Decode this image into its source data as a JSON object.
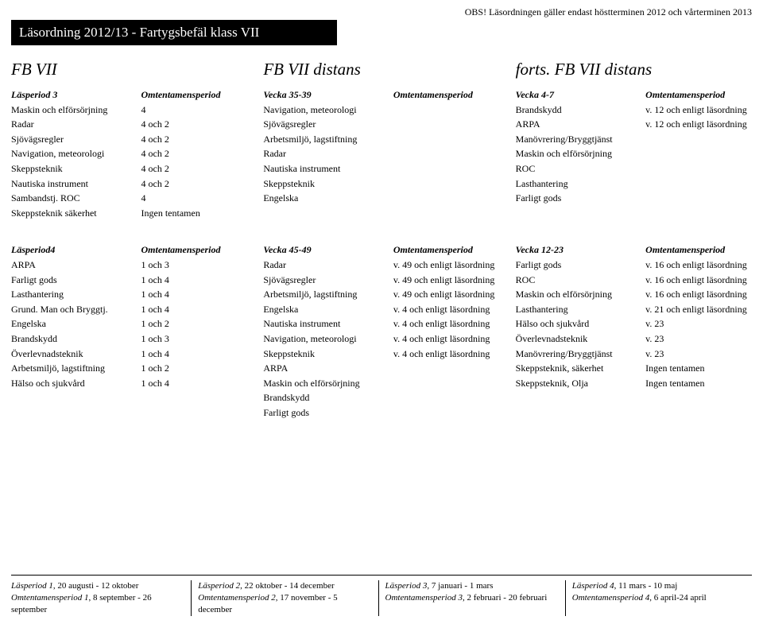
{
  "obs_line": "OBS! Läsordningen gäller endast höstterminen 2012 och vårterminen 2013",
  "title_bar": "Läsordning 2012/13 - Fartygsbefäl klass VII",
  "col1_heading": "FB VII",
  "col2_heading": "FB VII distans",
  "col3_heading": "forts. FB VII distans",
  "t1": {
    "h1": "Läsperiod 3",
    "h2": "Omtentamensperiod",
    "rows": [
      [
        "Maskin och elförsörjning",
        "4"
      ],
      [
        "Radar",
        "4 och 2"
      ],
      [
        "Sjövägsregler",
        "4 och 2"
      ],
      [
        "Navigation, meteorologi",
        "4 och 2"
      ],
      [
        "Skeppsteknik",
        "4 och 2"
      ],
      [
        "Nautiska instrument",
        "4 och 2"
      ],
      [
        "Sambandstj. ROC",
        "4"
      ],
      [
        "Skeppsteknik säkerhet",
        "Ingen tentamen"
      ]
    ]
  },
  "t2": {
    "h1": "Vecka 35-39",
    "h2": "Omtentamensperiod",
    "rows": [
      [
        "Navigation, meteorologi",
        ""
      ],
      [
        "Sjövägsregler",
        ""
      ],
      [
        "Arbetsmiljö, lagstiftning",
        ""
      ],
      [
        "Radar",
        ""
      ],
      [
        "Nautiska instrument",
        ""
      ],
      [
        "Skeppsteknik",
        ""
      ],
      [
        "Engelska",
        ""
      ]
    ]
  },
  "t3": {
    "h1": "Vecka 4-7",
    "h2": "Omtentamensperiod",
    "rows": [
      [
        "Brandskydd",
        "v. 12 och enligt läsordning"
      ],
      [
        "ARPA",
        "v. 12 och enligt läsordning"
      ],
      [
        "Manövrering/Bryggtjänst",
        ""
      ],
      [
        "Maskin och elförsörjning",
        ""
      ],
      [
        "ROC",
        ""
      ],
      [
        "Lasthantering",
        ""
      ],
      [
        "Farligt gods",
        ""
      ]
    ]
  },
  "t4": {
    "h1": "Läsperiod4",
    "h2": "Omtentamensperiod",
    "rows": [
      [
        "ARPA",
        "1 och 3"
      ],
      [
        "Farligt gods",
        "1 och 4"
      ],
      [
        "Lasthantering",
        "1 och 4"
      ],
      [
        "Grund. Man och Bryggtj.",
        "1 och 4"
      ],
      [
        "Engelska",
        "1 och 2"
      ],
      [
        "Brandskydd",
        "1 och 3"
      ],
      [
        "Överlevnadsteknik",
        "1 och 4"
      ],
      [
        "Arbetsmiljö, lagstiftning",
        "1 och 2"
      ],
      [
        "Hälso och sjukvård",
        "1 och 4"
      ]
    ]
  },
  "t5": {
    "h1": "Vecka 45-49",
    "h2": "Omtentamensperiod",
    "rows": [
      [
        "Radar",
        "v. 49 och enligt läsordning"
      ],
      [
        "Sjövägsregler",
        "v. 49 och enligt läsordning"
      ],
      [
        "Arbetsmiljö, lagstiftning",
        "v. 49 och enligt läsordning"
      ],
      [
        "Engelska",
        "v. 4 och enligt läsordning"
      ],
      [
        "Nautiska instrument",
        "v. 4 och enligt läsordning"
      ],
      [
        "Navigation, meteorologi",
        "v. 4 och enligt läsordning"
      ],
      [
        "Skeppsteknik",
        "v. 4 och enligt läsordning"
      ],
      [
        "ARPA",
        ""
      ],
      [
        "Maskin och elförsörjning",
        ""
      ],
      [
        "Brandskydd",
        ""
      ],
      [
        "Farligt gods",
        ""
      ]
    ]
  },
  "t6": {
    "h1": "Vecka 12-23",
    "h2": "Omtentamensperiod",
    "rows": [
      [
        "Farligt gods",
        "v. 16 och enligt läsordning"
      ],
      [
        "ROC",
        "v. 16 och enligt läsordning"
      ],
      [
        "Maskin och elförsörjning",
        "v. 16 och enligt läsordning"
      ],
      [
        "Lasthantering",
        "v. 21 och enligt läsordning"
      ],
      [
        "Hälso och sjukvård",
        "v. 23"
      ],
      [
        "Överlevnadsteknik",
        "v. 23"
      ],
      [
        "Manövrering/Bryggtjänst",
        "v. 23"
      ],
      [
        "Skeppsteknik, säkerhet",
        "Ingen tentamen"
      ],
      [
        "Skeppsteknik, Olja",
        "Ingen tentamen"
      ]
    ]
  },
  "footer": {
    "c1a": "Läsperiod 1",
    "c1b": ", 20 augusti - 12 oktober",
    "c1c": "Omtentamensperiod 1",
    "c1d": ", 8 september - 26 september",
    "c2a": "Läsperiod 2",
    "c2b": ", 22 oktober - 14 december",
    "c2c": "Omtentamensperiod 2",
    "c2d": ", 17 november - 5 december",
    "c3a": "Läsperiod 3",
    "c3b": ", 7 januari - 1 mars",
    "c3c": "Omtentamensperiod 3",
    "c3d": ", 2 februari - 20 februari",
    "c4a": "Läsperiod 4",
    "c4b": ", 11 mars - 10 maj",
    "c4c": "Omtentamensperiod 4",
    "c4d": ",  6 april-24 april"
  }
}
